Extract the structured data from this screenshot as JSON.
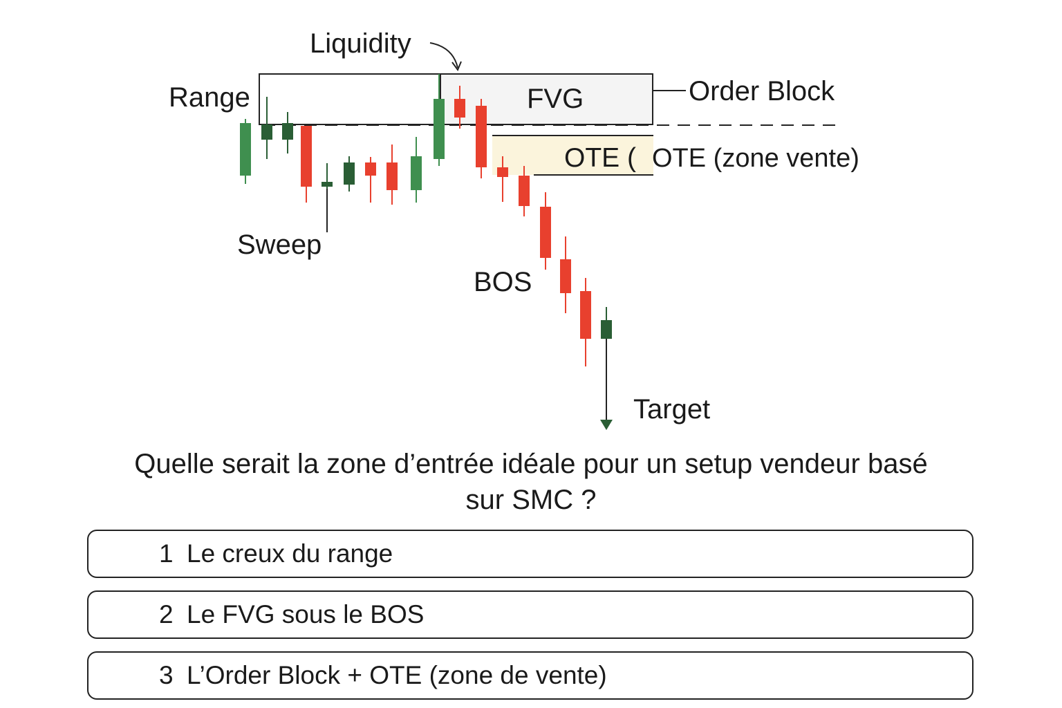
{
  "labels": {
    "liquidity": "Liquidity",
    "range": "Range",
    "fvg": "FVG",
    "order_block": "Order Block",
    "ote_partial": "OTE (",
    "ote_zone": "OTE (zone vente)",
    "sweep": "Sweep",
    "bos": "BOS",
    "target": "Target"
  },
  "colors": {
    "bull": "#3f8f4f",
    "bull_dark": "#2a5e35",
    "bear": "#e8402e",
    "fvg_fill": "#f4f4f4",
    "ote_fill": "#fbf4dc"
  },
  "question": {
    "line1": "Quelle serait la zone d’entrée idéale pour un setup vendeur basé",
    "line2": "sur SMC ?"
  },
  "choices": [
    {
      "number": "1",
      "label": "Le creux du range"
    },
    {
      "number": "2",
      "label": "Le FVG sous le BOS"
    },
    {
      "number": "3",
      "label": "L’Order Block + OTE (zone de vente)"
    }
  ]
}
